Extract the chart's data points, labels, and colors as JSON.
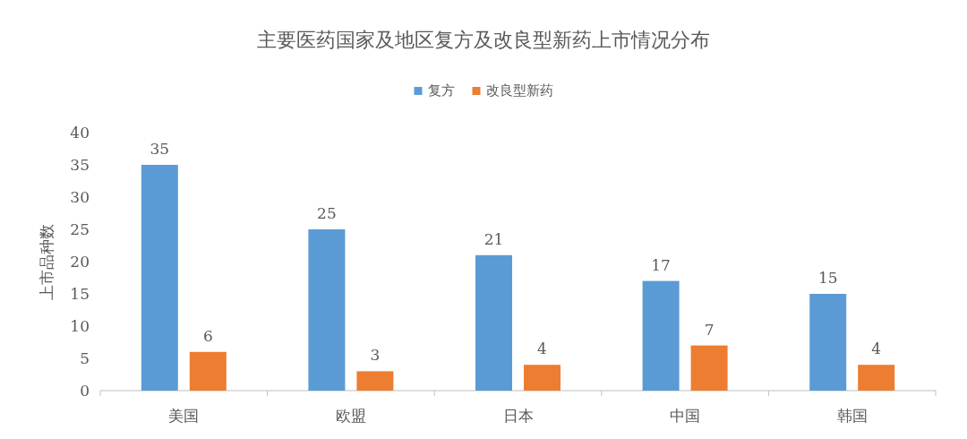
{
  "chart_data": {
    "type": "bar",
    "title": "主要医药国家及地区复方及改良型新药上市情况分布",
    "ylabel": "上市品种数",
    "categories": [
      "美国",
      "欧盟",
      "日本",
      "中国",
      "韩国"
    ],
    "series": [
      {
        "name": "复方",
        "color": "#5b9bd5",
        "values": [
          35,
          25,
          21,
          17,
          15
        ]
      },
      {
        "name": "改良型新药",
        "color": "#ed7d31",
        "values": [
          6,
          3,
          4,
          7,
          4
        ]
      }
    ],
    "ylim": [
      0,
      40
    ],
    "yticks": [
      0,
      5,
      10,
      15,
      20,
      25,
      30,
      35,
      40
    ],
    "data_labels": true,
    "legend": "top",
    "grid": false
  }
}
